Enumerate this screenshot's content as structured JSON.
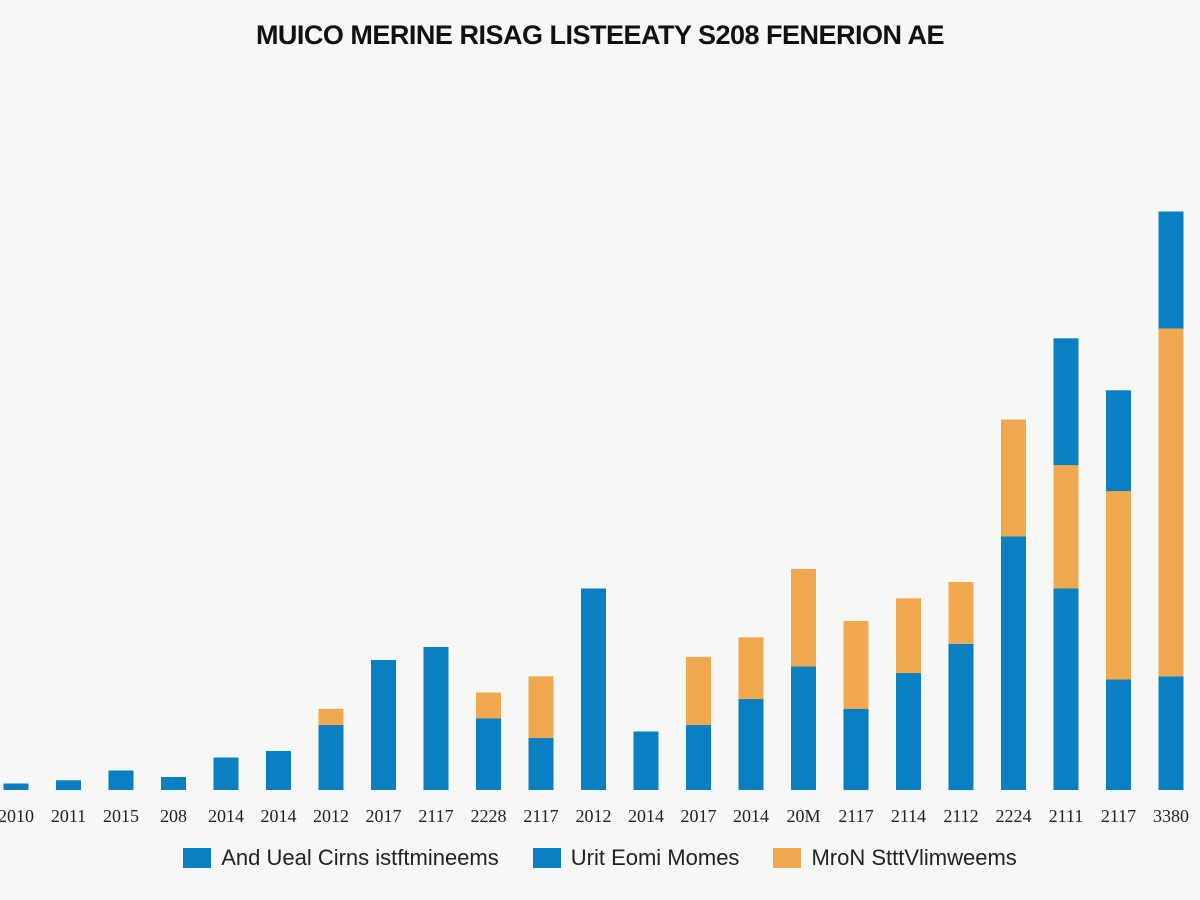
{
  "chart_data": {
    "type": "bar",
    "stacked": true,
    "title": "MUICO MERINE RISAG LISTEEATY S208 FENERION AE",
    "categories": [
      "2010",
      "2011",
      "2015",
      "208",
      "2014",
      "2014",
      "2012",
      "2017",
      "2117",
      "2228",
      "2117",
      "2012",
      "2014",
      "2017",
      "2014",
      "20M",
      "2117",
      "2114",
      "2112",
      "2224",
      "2111",
      "2117",
      "3380"
    ],
    "series": [
      {
        "name": "And Ueal Cirns istftmineems",
        "color": "#0a7fc2",
        "values": [
          0,
          0,
          0,
          0,
          0,
          0,
          0,
          0,
          0,
          0,
          0,
          0,
          0,
          0,
          0,
          0,
          0,
          0,
          0,
          0,
          0,
          0,
          0
        ]
      },
      {
        "name": "Urit Eomi Momes",
        "color": "#0a7fc2",
        "values": [
          1,
          1.5,
          3,
          2,
          5,
          6,
          10,
          20,
          22,
          11,
          8,
          31,
          9,
          10,
          14,
          19,
          12.5,
          18,
          22.5,
          39,
          31,
          17,
          17.5
        ]
      },
      {
        "name": "MroN StttVlimweems",
        "color": "#f0a94e",
        "values": [
          0,
          0,
          0,
          0,
          0,
          0,
          2.5,
          0,
          0,
          4,
          9.5,
          0,
          0,
          10.5,
          9.5,
          15,
          13.5,
          11.5,
          9.5,
          18,
          19,
          29,
          53.5
        ]
      },
      {
        "name": "",
        "color": "#0a7fc2",
        "values": [
          0,
          0,
          0,
          0,
          0,
          0,
          0,
          0,
          0,
          0,
          0,
          0,
          0,
          0,
          0,
          0,
          0,
          0,
          0,
          0,
          19.5,
          15.5,
          18
        ]
      }
    ],
    "ylim": [
      0,
      100
    ],
    "grid": false,
    "legend": "bottom"
  }
}
